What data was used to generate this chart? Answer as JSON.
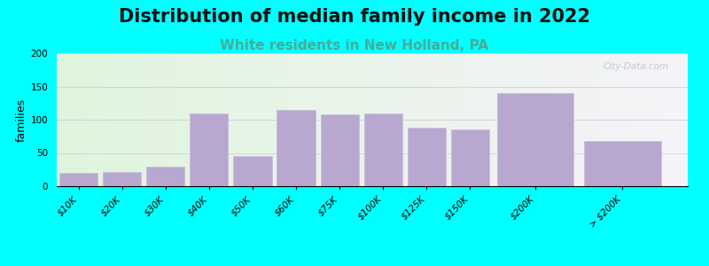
{
  "title": "Distribution of median family income in 2022",
  "subtitle": "White residents in New Holland, PA",
  "ylabel": "families",
  "background_outer": "#00FFFF",
  "bar_color": "#b8a8d0",
  "bar_edge_color": "#c8b8e0",
  "categories": [
    "$10K",
    "$20K",
    "$30K",
    "$40K",
    "$50K",
    "$60K",
    "$75K",
    "$100K",
    "$125K",
    "$150K",
    "$200K",
    "> $200K"
  ],
  "values": [
    20,
    22,
    30,
    110,
    45,
    115,
    108,
    110,
    88,
    85,
    140,
    68
  ],
  "bar_widths": [
    1,
    1,
    1,
    1,
    1,
    1,
    1,
    1,
    1,
    1,
    2,
    2
  ],
  "bar_positions": [
    0.5,
    1.5,
    2.5,
    3.5,
    4.5,
    5.5,
    6.5,
    7.5,
    8.5,
    9.5,
    11,
    13
  ],
  "ylim": [
    0,
    200
  ],
  "yticks": [
    0,
    50,
    100,
    150,
    200
  ],
  "title_fontsize": 15,
  "subtitle_fontsize": 11,
  "subtitle_color": "#4aaa99",
  "ylabel_fontsize": 9,
  "tick_fontsize": 7.5,
  "watermark": "City-Data.com"
}
